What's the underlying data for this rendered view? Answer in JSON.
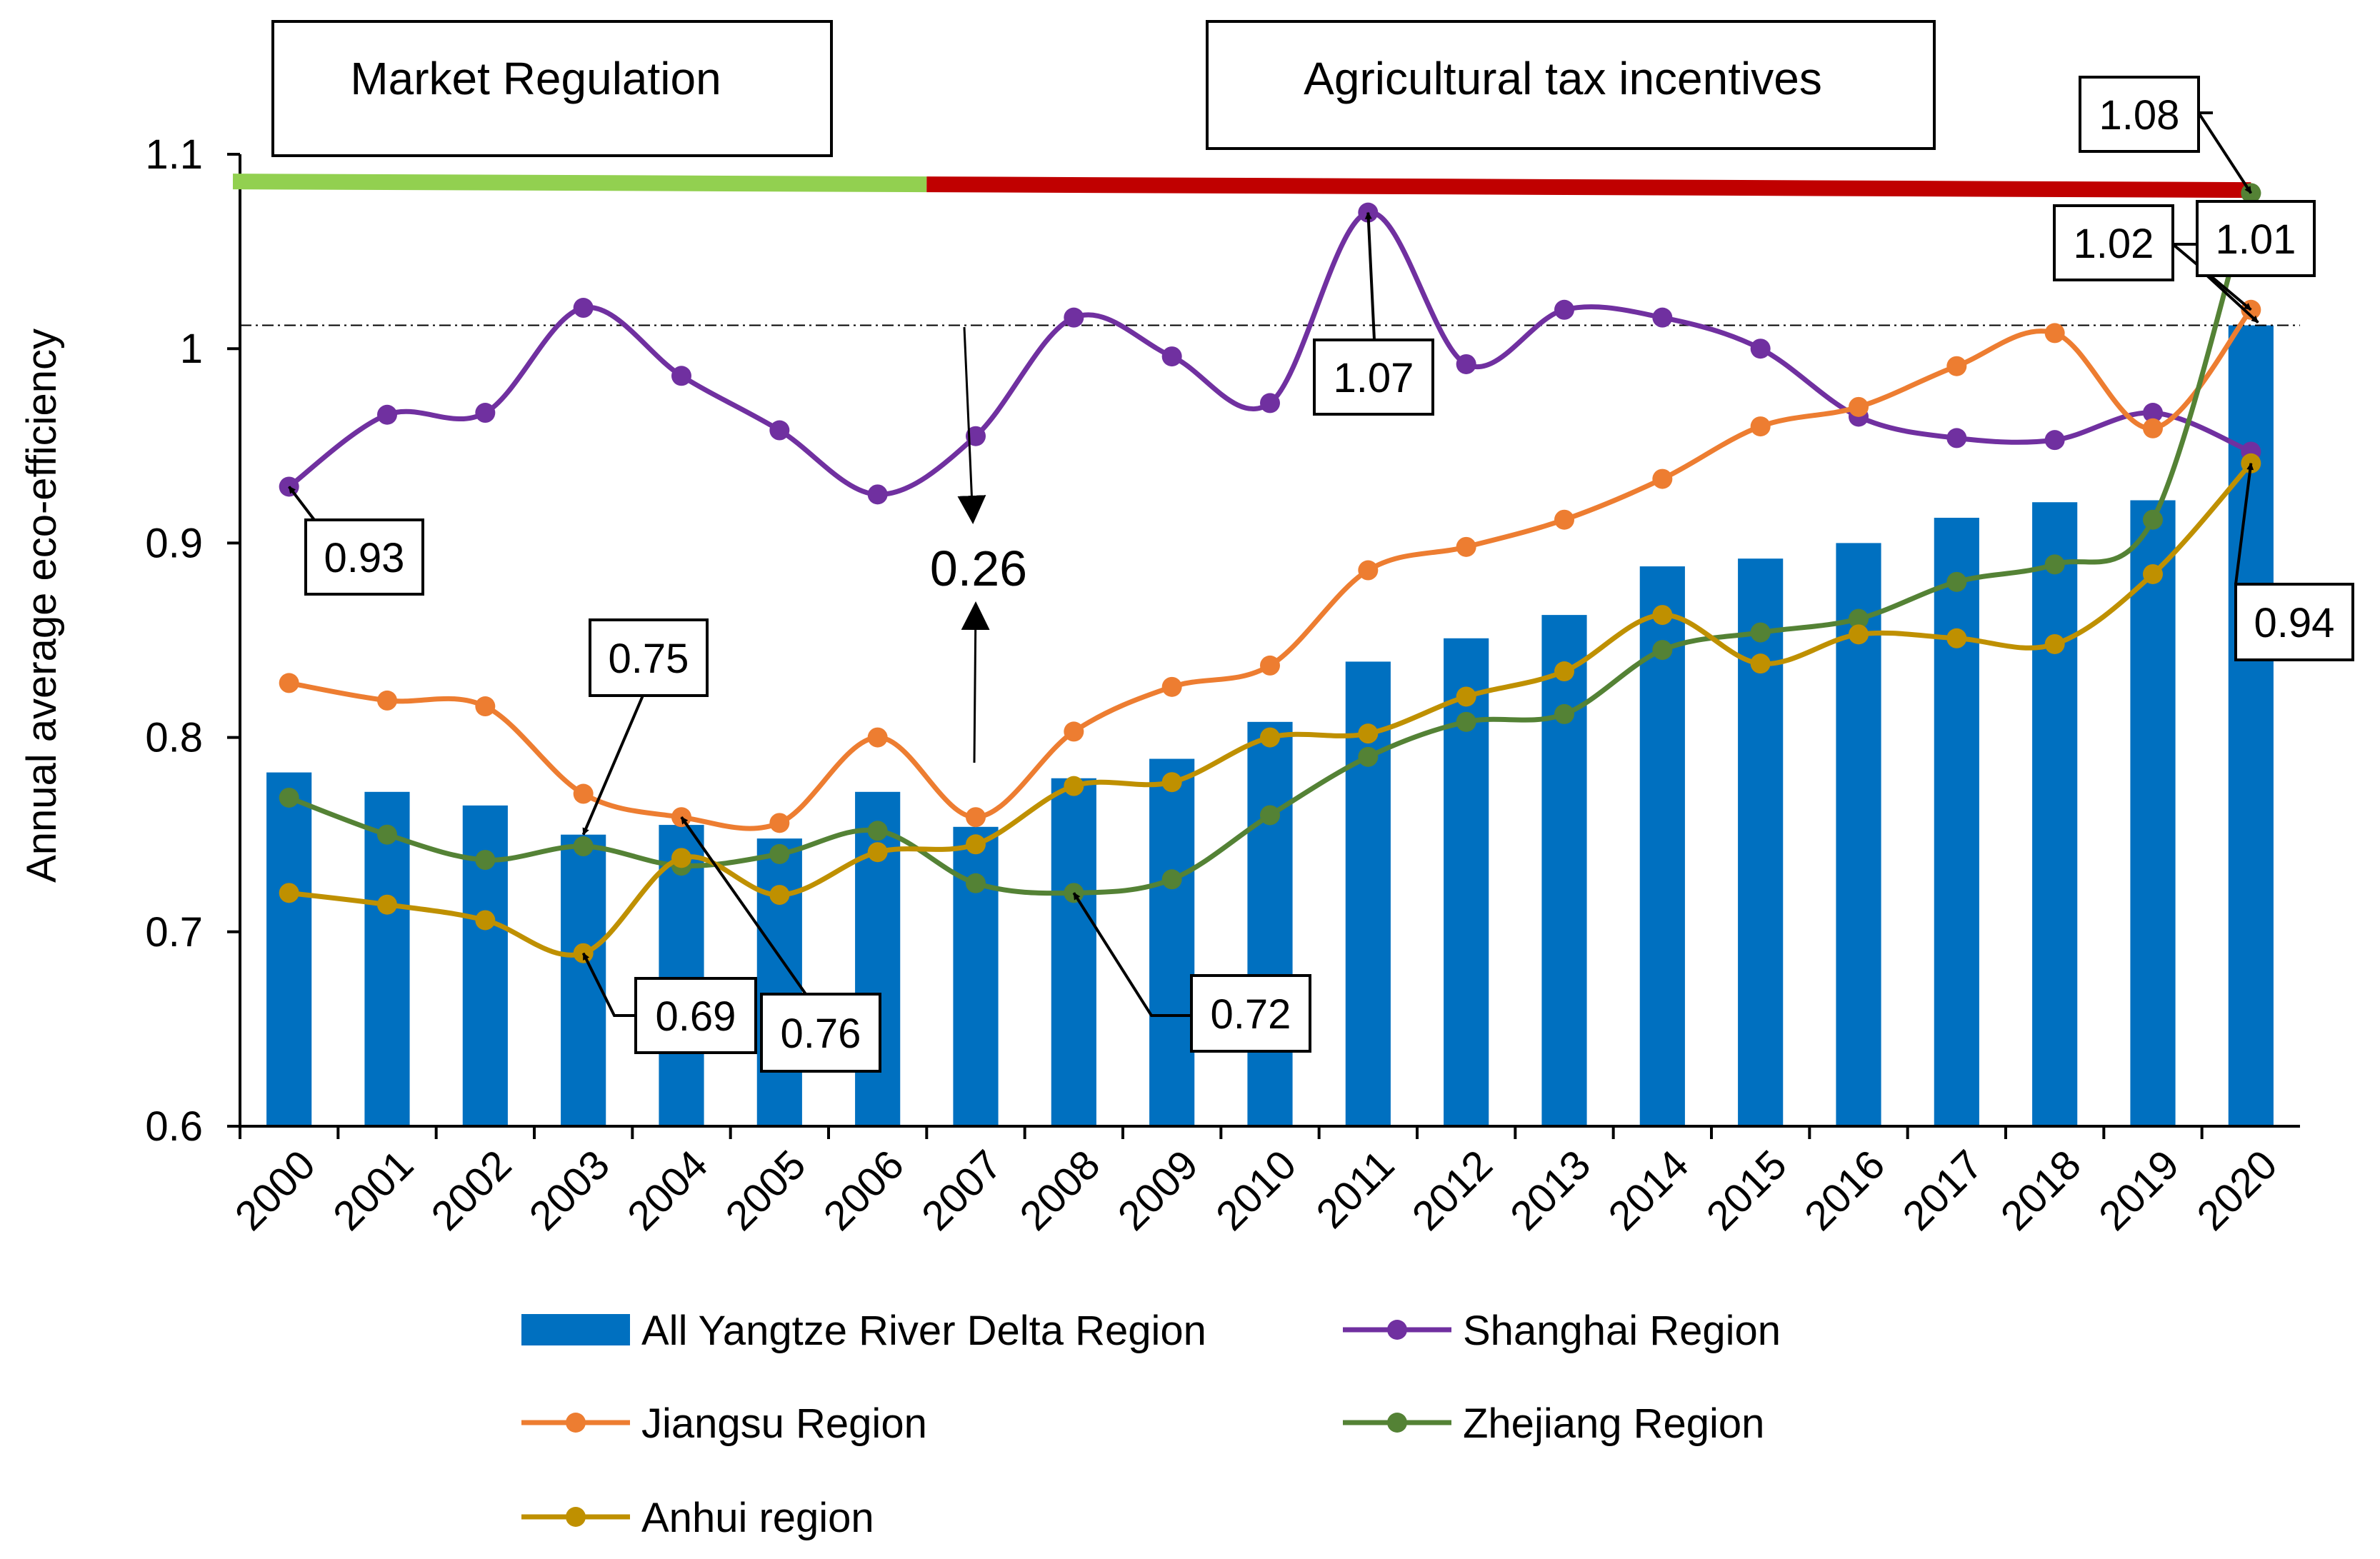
{
  "chart_data": {
    "type": "bar",
    "title": "",
    "xlabel": "",
    "ylabel": "Annual average eco-efficiency",
    "ylim": [
      0.6,
      1.1
    ],
    "yticks": [
      0.6,
      0.7,
      0.8,
      0.9,
      1.0,
      1.1
    ],
    "ytick_labels": [
      "0.6",
      "0.7",
      "0.8",
      "0.9",
      "1",
      "1.1"
    ],
    "categories": [
      "2000",
      "2001",
      "2002",
      "2003",
      "2004",
      "2005",
      "2006",
      "2007",
      "2008",
      "2009",
      "2010",
      "2011",
      "2012",
      "2013",
      "2014",
      "2015",
      "2016",
      "2017",
      "2018",
      "2019",
      "2020"
    ],
    "bar_series": {
      "name": "All Yangtze River Delta Region",
      "color": "#0070C0",
      "values": [
        0.782,
        0.772,
        0.765,
        0.75,
        0.755,
        0.748,
        0.772,
        0.754,
        0.779,
        0.789,
        0.808,
        0.839,
        0.851,
        0.863,
        0.888,
        0.892,
        0.9,
        0.913,
        0.921,
        0.922,
        1.012
      ]
    },
    "series": [
      {
        "name": "Shanghai Region",
        "color": "#7030A0",
        "values": [
          0.929,
          0.966,
          0.967,
          1.021,
          0.986,
          0.958,
          0.925,
          0.955,
          1.016,
          0.996,
          0.972,
          1.07,
          0.992,
          1.02,
          1.016,
          1.0,
          0.965,
          0.954,
          0.953,
          0.967,
          0.947
        ]
      },
      {
        "name": "Jiangsu Region",
        "color": "#ED7D31",
        "values": [
          0.828,
          0.819,
          0.816,
          0.771,
          0.759,
          0.756,
          0.8,
          0.759,
          0.803,
          0.826,
          0.837,
          0.886,
          0.898,
          0.912,
          0.933,
          0.96,
          0.97,
          0.991,
          1.008,
          0.959,
          1.02
        ]
      },
      {
        "name": "Zhejiang Region",
        "color": "#548235",
        "values": [
          0.769,
          0.75,
          0.737,
          0.744,
          0.734,
          0.74,
          0.752,
          0.725,
          0.72,
          0.727,
          0.76,
          0.79,
          0.808,
          0.812,
          0.845,
          0.854,
          0.861,
          0.88,
          0.889,
          0.912,
          1.08
        ]
      },
      {
        "name": "Anhui region",
        "color": "#BF9000",
        "values": [
          0.72,
          0.714,
          0.706,
          0.689,
          0.738,
          0.719,
          0.741,
          0.745,
          0.775,
          0.777,
          0.8,
          0.802,
          0.821,
          0.834,
          0.863,
          0.838,
          0.853,
          0.851,
          0.848,
          0.884,
          0.941
        ]
      }
    ],
    "reference_line": {
      "value": 1.012,
      "style": "dash-dot"
    },
    "period_bar": {
      "value": 1.086
    },
    "periods": [
      {
        "label": "Market Regulation",
        "start": "2000",
        "end": "2006.5",
        "color": "#92D050"
      },
      {
        "label": "Agricultural tax incentives",
        "start": "2006.5",
        "end": "2020",
        "color": "#C00000"
      }
    ],
    "annotations": [
      {
        "label": "0.93",
        "year": "2000",
        "value": 0.929
      },
      {
        "label": "0.75",
        "year": "2003",
        "value": 0.75
      },
      {
        "label": "0.69",
        "year": "2003",
        "value": 0.689
      },
      {
        "label": "0.76",
        "year": "2004",
        "value": 0.759
      },
      {
        "label": "0.72",
        "year": "2008",
        "value": 0.72
      },
      {
        "label": "1.07",
        "year": "2011",
        "value": 1.07
      },
      {
        "label": "1.08",
        "year": "2020",
        "value": 1.08
      },
      {
        "label": "1.02",
        "year": "2020",
        "value": 1.02
      },
      {
        "label": "1.01",
        "year": "2020",
        "value": 1.012
      },
      {
        "label": "0.94",
        "year": "2020",
        "value": 0.941
      }
    ],
    "gap_annotation": {
      "label": "0.26",
      "year": "2007"
    },
    "legend": "bottom"
  }
}
